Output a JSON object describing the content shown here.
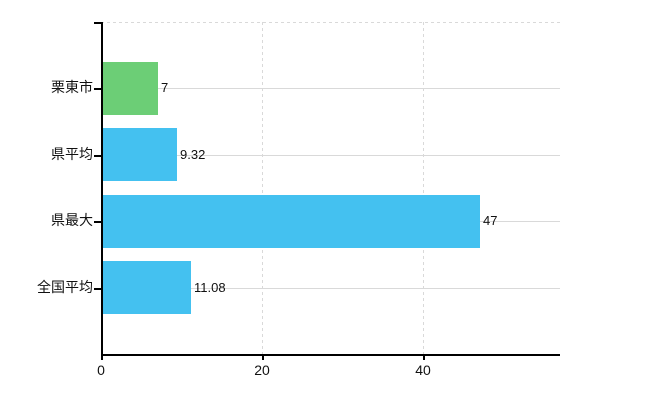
{
  "chart_data": {
    "type": "bar",
    "orientation": "horizontal",
    "title": "",
    "xlabel": "",
    "ylabel": "",
    "categories": [
      "栗東市",
      "県平均",
      "県最大",
      "全国平均"
    ],
    "values": [
      7,
      9.32,
      47,
      11.08
    ],
    "value_labels": [
      "7",
      "9.32",
      "47",
      "11.08"
    ],
    "bar_colors": [
      "#6cce76",
      "#44c1f0",
      "#44c1f0",
      "#44c1f0"
    ],
    "xlim": [
      0,
      57
    ],
    "xticks": [
      0,
      20,
      40
    ],
    "xtick_labels": [
      "0",
      "20",
      "40"
    ],
    "grid": {
      "row_lines": true,
      "vertical_lines_at": [
        20,
        40
      ],
      "top_border_dashed": true
    },
    "legend": "none",
    "colors": {
      "axis": "#000000",
      "gridline": "#d9d9d9",
      "text": "#000000",
      "background": "#ffffff"
    }
  }
}
